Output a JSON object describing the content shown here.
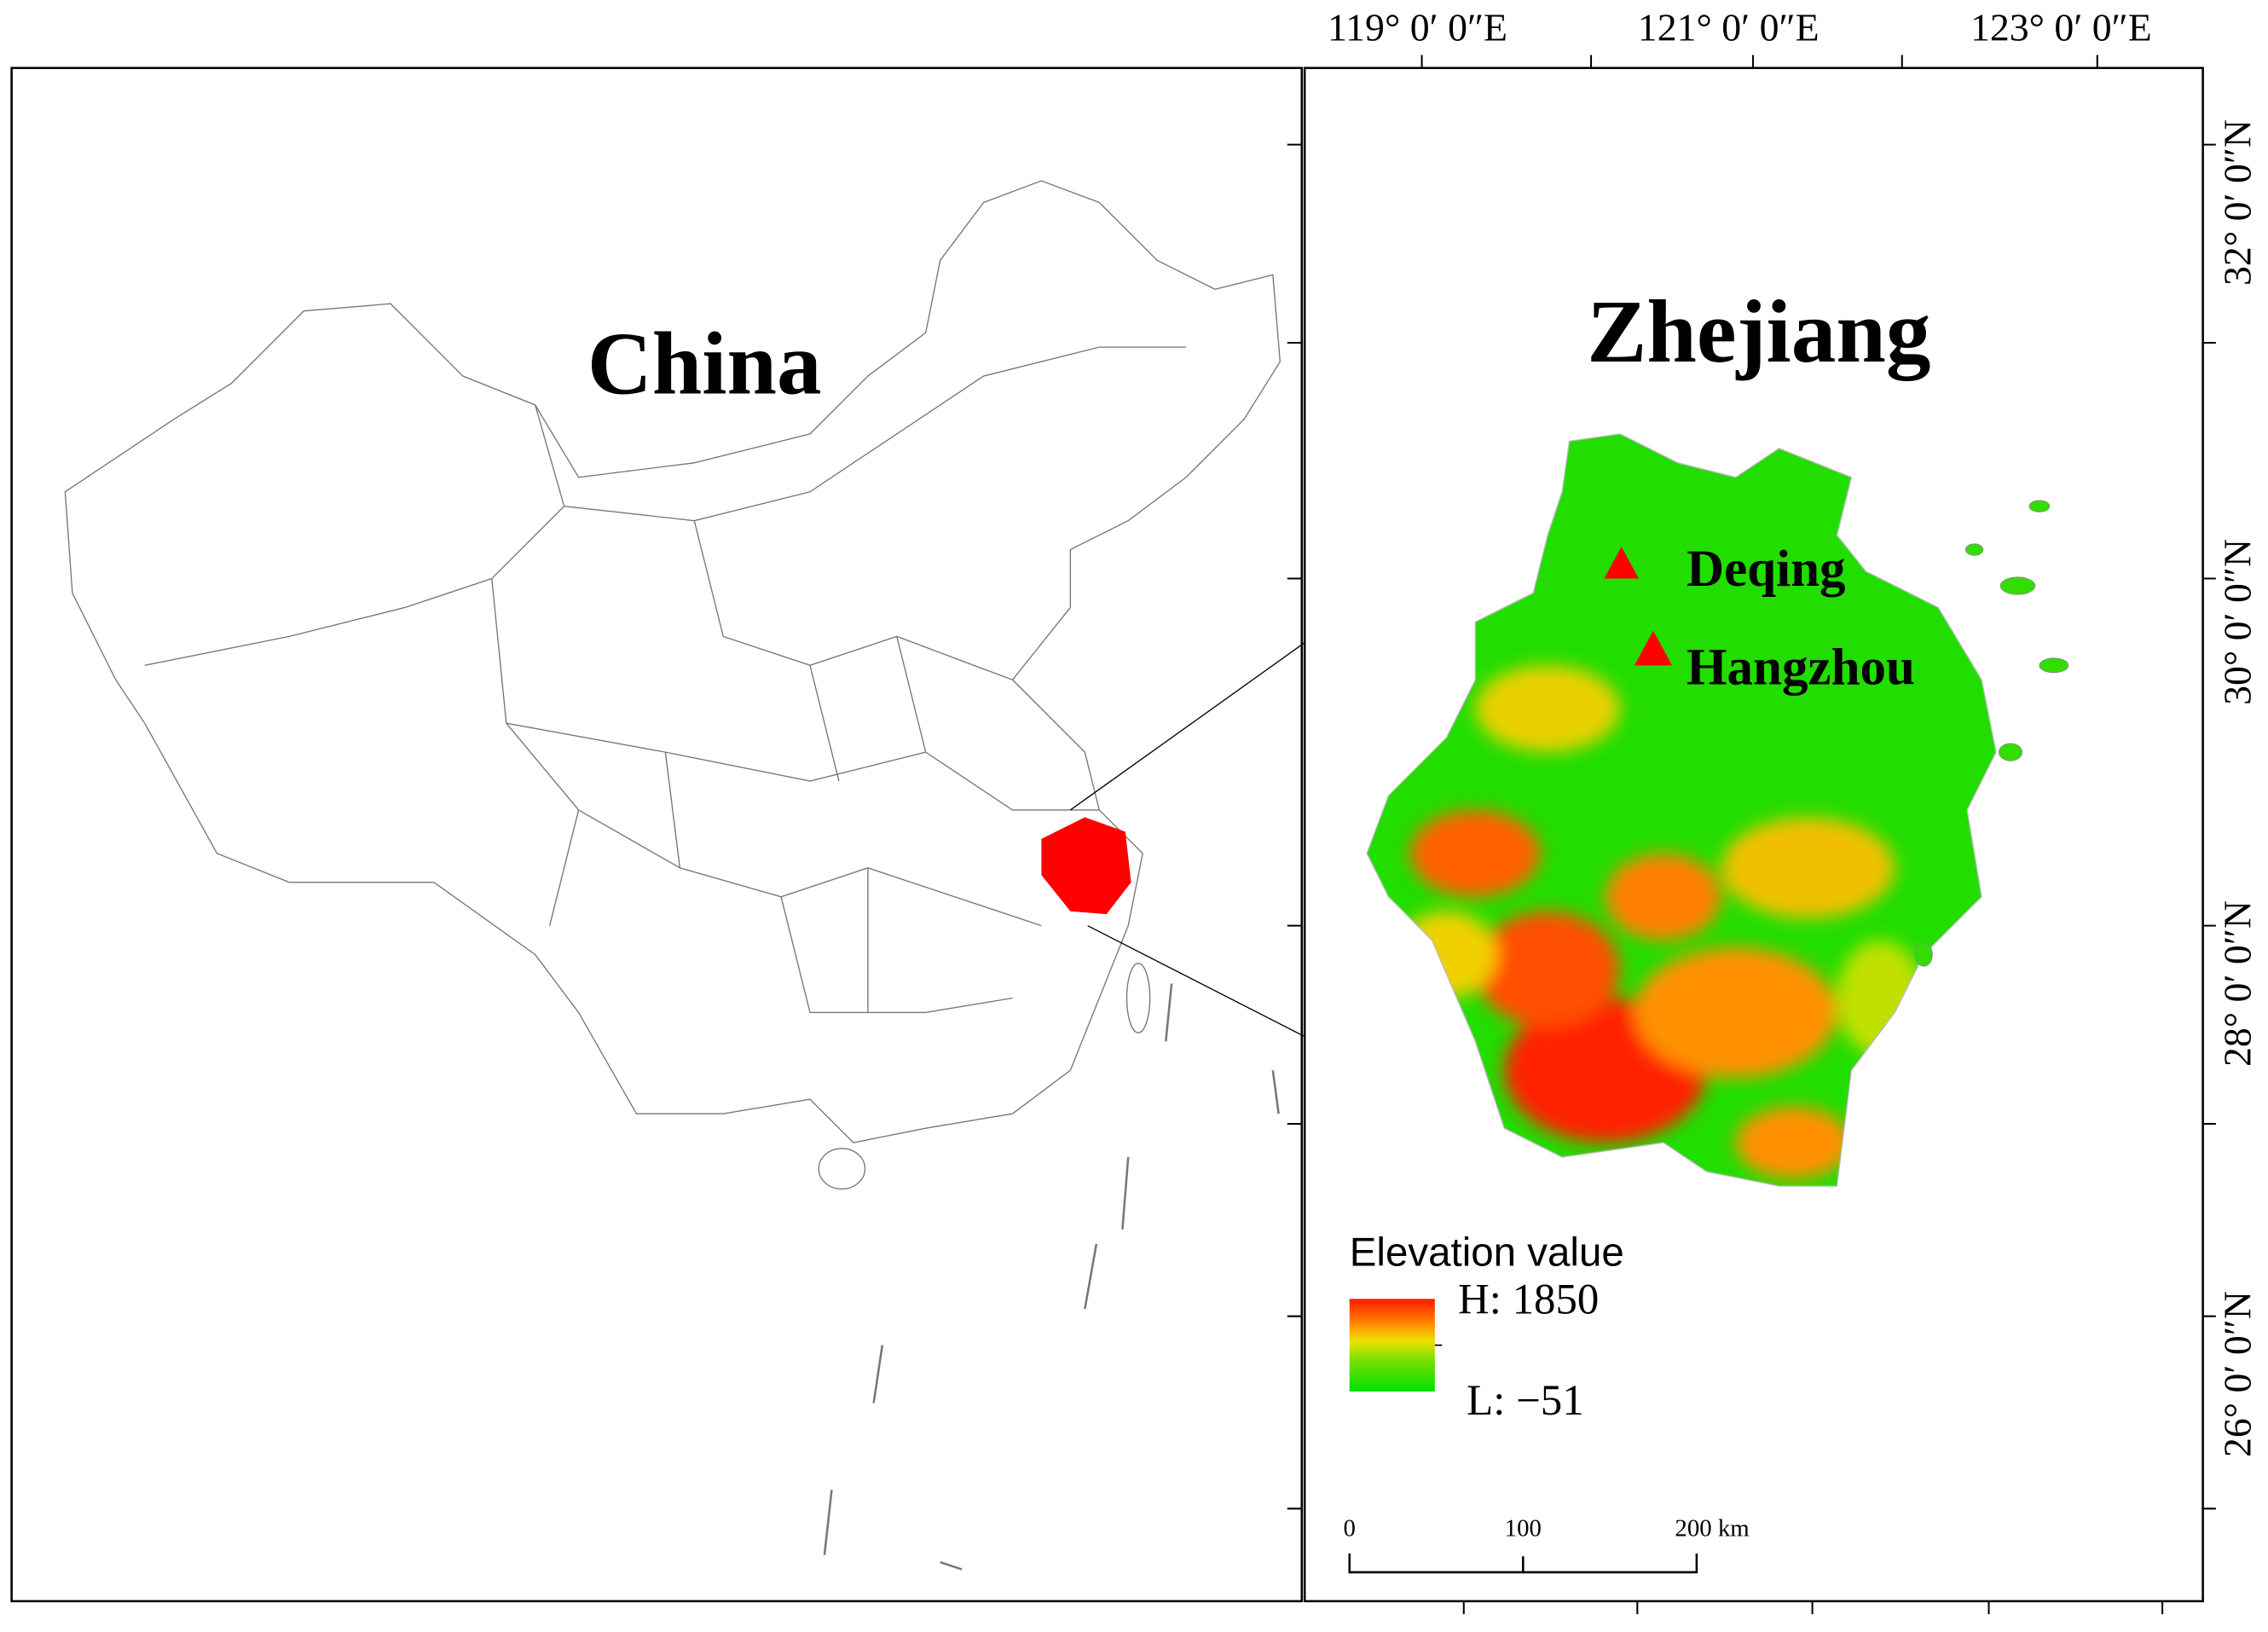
{
  "map": {
    "china_label": "China",
    "zhejiang_label": "Zhejiang",
    "sites": [
      "Deqing",
      "Hangzhou"
    ],
    "legend": {
      "title": "Elevation value",
      "high": "H: 1850",
      "low": "L: −51"
    },
    "scale_bar": {
      "labels": [
        "0",
        "100",
        "200 km"
      ]
    },
    "longitude_labels": [
      "119°  0′ 0″E",
      "121°  0′ 0″E",
      "123°  0′ 0″E"
    ],
    "latitude_labels": [
      "32°  0′ 0″N",
      "30°  0′ 0″N",
      "28°  0′ 0″N",
      "26°  0′ 0″N"
    ]
  }
}
